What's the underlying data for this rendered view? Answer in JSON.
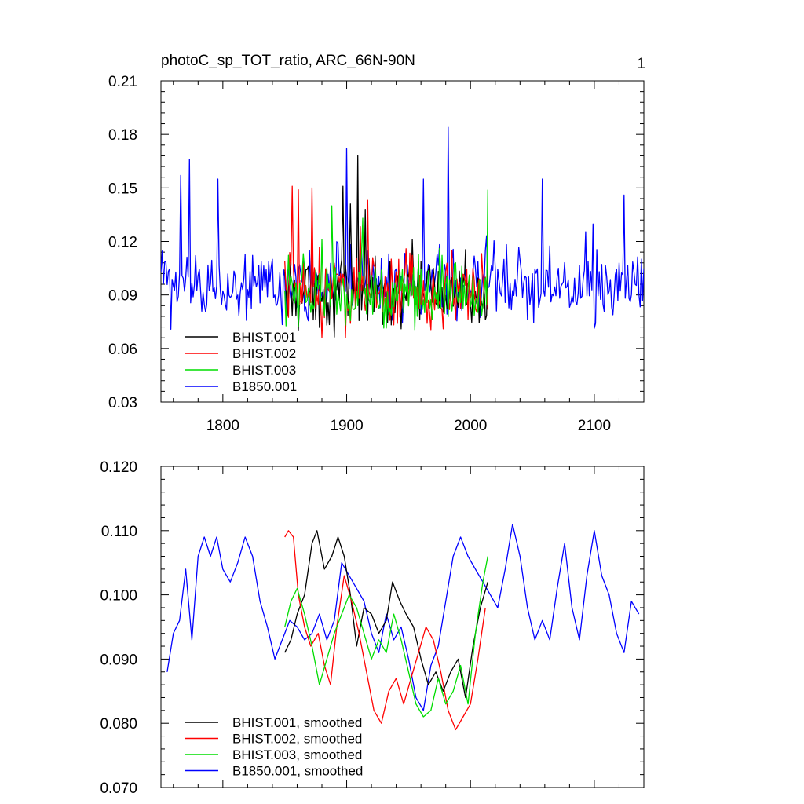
{
  "chart_data": [
    {
      "type": "line",
      "title": "photoC_sp_TOT_ratio, ARC_66N-90N",
      "panel_number": "1",
      "xlabel": "",
      "ylabel": "",
      "xlim": [
        1750,
        2140
      ],
      "ylim": [
        0.03,
        0.21
      ],
      "x_ticks": [
        1800,
        1900,
        2000,
        2100
      ],
      "x_tick_labels": [
        "1800",
        "1900",
        "2000",
        "2100"
      ],
      "y_ticks": [
        0.03,
        0.06,
        0.09,
        0.12,
        0.15,
        0.18,
        0.21
      ],
      "y_tick_labels": [
        "0.03",
        "0.06",
        "0.09",
        "0.12",
        "0.15",
        "0.18",
        "0.21"
      ],
      "legend_position": "bottom-left",
      "series": [
        {
          "name": "BHIST.001",
          "color": "#000000",
          "x_start": 1850,
          "x_end": 2014,
          "mean": 0.092,
          "spread": 0.016,
          "peaks": [
            [
              1897,
              0.151
            ],
            [
              1903,
              0.141
            ],
            [
              1909,
              0.168
            ],
            [
              1915,
              0.138
            ]
          ]
        },
        {
          "name": "BHIST.002",
          "color": "#ff0000",
          "x_start": 1850,
          "x_end": 2014,
          "mean": 0.092,
          "spread": 0.016,
          "peaks": [
            [
              1856,
              0.151
            ],
            [
              1861,
              0.149
            ],
            [
              1872,
              0.15
            ],
            [
              1917,
              0.143
            ]
          ]
        },
        {
          "name": "BHIST.003",
          "color": "#00dd00",
          "x_start": 1850,
          "x_end": 2014,
          "mean": 0.09,
          "spread": 0.015,
          "peaks": [
            [
              1888,
              0.14
            ],
            [
              1913,
              0.133
            ],
            [
              2014,
              0.149
            ]
          ]
        },
        {
          "name": "B1850.001",
          "color": "#0000ff",
          "x_start": 1750,
          "x_end": 2140,
          "mean": 0.095,
          "spread": 0.016,
          "peaks": [
            [
              1766,
              0.157
            ],
            [
              1773,
              0.166
            ],
            [
              1796,
              0.155
            ],
            [
              1900,
              0.172
            ],
            [
              1982,
              0.184
            ],
            [
              1962,
              0.155
            ],
            [
              2058,
              0.155
            ],
            [
              2124,
              0.146
            ]
          ]
        }
      ]
    },
    {
      "type": "line",
      "title": "",
      "xlabel": "",
      "ylabel": "",
      "xlim": [
        1750,
        2140
      ],
      "ylim": [
        0.07,
        0.12
      ],
      "x_ticks": [
        1800,
        1900,
        2000,
        2100
      ],
      "y_ticks": [
        0.07,
        0.08,
        0.09,
        0.1,
        0.11,
        0.12
      ],
      "y_tick_labels": [
        "0.070",
        "0.080",
        "0.090",
        "0.100",
        "0.110",
        "0.120"
      ],
      "legend_position": "bottom-left",
      "series": [
        {
          "name": "BHIST.001, smoothed",
          "color": "#000000",
          "x": [
            1850,
            1855,
            1860,
            1866,
            1872,
            1876,
            1882,
            1888,
            1893,
            1898,
            1903,
            1908,
            1914,
            1920,
            1926,
            1932,
            1937,
            1943,
            1948,
            1954,
            1960,
            1966,
            1972,
            1978,
            1984,
            1990,
            1996,
            2002,
            2008,
            2014
          ],
          "y": [
            0.091,
            0.093,
            0.097,
            0.1,
            0.108,
            0.11,
            0.104,
            0.106,
            0.109,
            0.106,
            0.1,
            0.092,
            0.098,
            0.097,
            0.094,
            0.096,
            0.102,
            0.099,
            0.097,
            0.095,
            0.09,
            0.086,
            0.088,
            0.085,
            0.088,
            0.09,
            0.084,
            0.092,
            0.098,
            0.102
          ]
        },
        {
          "name": "BHIST.002, smoothed",
          "color": "#ff0000",
          "x": [
            1850,
            1853,
            1857,
            1861,
            1866,
            1871,
            1877,
            1882,
            1887,
            1892,
            1898,
            1904,
            1910,
            1916,
            1922,
            1928,
            1934,
            1940,
            1946,
            1952,
            1958,
            1964,
            1970,
            1976,
            1982,
            1988,
            1994,
            2000,
            2006,
            2012
          ],
          "y": [
            0.109,
            0.11,
            0.109,
            0.1,
            0.095,
            0.092,
            0.094,
            0.089,
            0.086,
            0.095,
            0.103,
            0.099,
            0.094,
            0.088,
            0.082,
            0.08,
            0.085,
            0.087,
            0.083,
            0.087,
            0.091,
            0.095,
            0.093,
            0.088,
            0.082,
            0.079,
            0.081,
            0.083,
            0.09,
            0.098
          ]
        },
        {
          "name": "BHIST.003, smoothed",
          "color": "#00dd00",
          "x": [
            1850,
            1855,
            1860,
            1866,
            1872,
            1878,
            1884,
            1890,
            1896,
            1902,
            1908,
            1914,
            1920,
            1926,
            1932,
            1938,
            1944,
            1950,
            1956,
            1962,
            1968,
            1974,
            1980,
            1986,
            1992,
            1998,
            2004,
            2010,
            2014
          ],
          "y": [
            0.095,
            0.099,
            0.101,
            0.097,
            0.092,
            0.086,
            0.09,
            0.094,
            0.097,
            0.1,
            0.098,
            0.094,
            0.09,
            0.093,
            0.091,
            0.097,
            0.093,
            0.088,
            0.083,
            0.081,
            0.082,
            0.087,
            0.083,
            0.085,
            0.089,
            0.083,
            0.094,
            0.102,
            0.106
          ]
        },
        {
          "name": "B1850.001, smoothed",
          "color": "#0000ff",
          "x": [
            1755,
            1760,
            1765,
            1770,
            1775,
            1780,
            1785,
            1790,
            1795,
            1800,
            1806,
            1812,
            1818,
            1824,
            1830,
            1836,
            1842,
            1848,
            1854,
            1860,
            1866,
            1872,
            1878,
            1884,
            1890,
            1896,
            1902,
            1908,
            1914,
            1920,
            1926,
            1932,
            1938,
            1944,
            1950,
            1956,
            1962,
            1968,
            1974,
            1980,
            1986,
            1992,
            1998,
            2004,
            2010,
            2016,
            2022,
            2028,
            2034,
            2040,
            2046,
            2052,
            2058,
            2064,
            2070,
            2076,
            2082,
            2088,
            2094,
            2100,
            2106,
            2112,
            2118,
            2124,
            2130,
            2136
          ],
          "y": [
            0.088,
            0.094,
            0.096,
            0.104,
            0.093,
            0.106,
            0.109,
            0.106,
            0.109,
            0.104,
            0.102,
            0.105,
            0.109,
            0.106,
            0.099,
            0.095,
            0.09,
            0.093,
            0.096,
            0.095,
            0.093,
            0.094,
            0.097,
            0.093,
            0.096,
            0.105,
            0.103,
            0.101,
            0.099,
            0.094,
            0.091,
            0.097,
            0.093,
            0.095,
            0.09,
            0.084,
            0.082,
            0.089,
            0.092,
            0.099,
            0.106,
            0.109,
            0.106,
            0.104,
            0.102,
            0.1,
            0.098,
            0.104,
            0.111,
            0.106,
            0.098,
            0.093,
            0.096,
            0.093,
            0.101,
            0.108,
            0.098,
            0.093,
            0.103,
            0.11,
            0.103,
            0.1,
            0.094,
            0.091,
            0.099,
            0.097
          ]
        }
      ]
    }
  ]
}
